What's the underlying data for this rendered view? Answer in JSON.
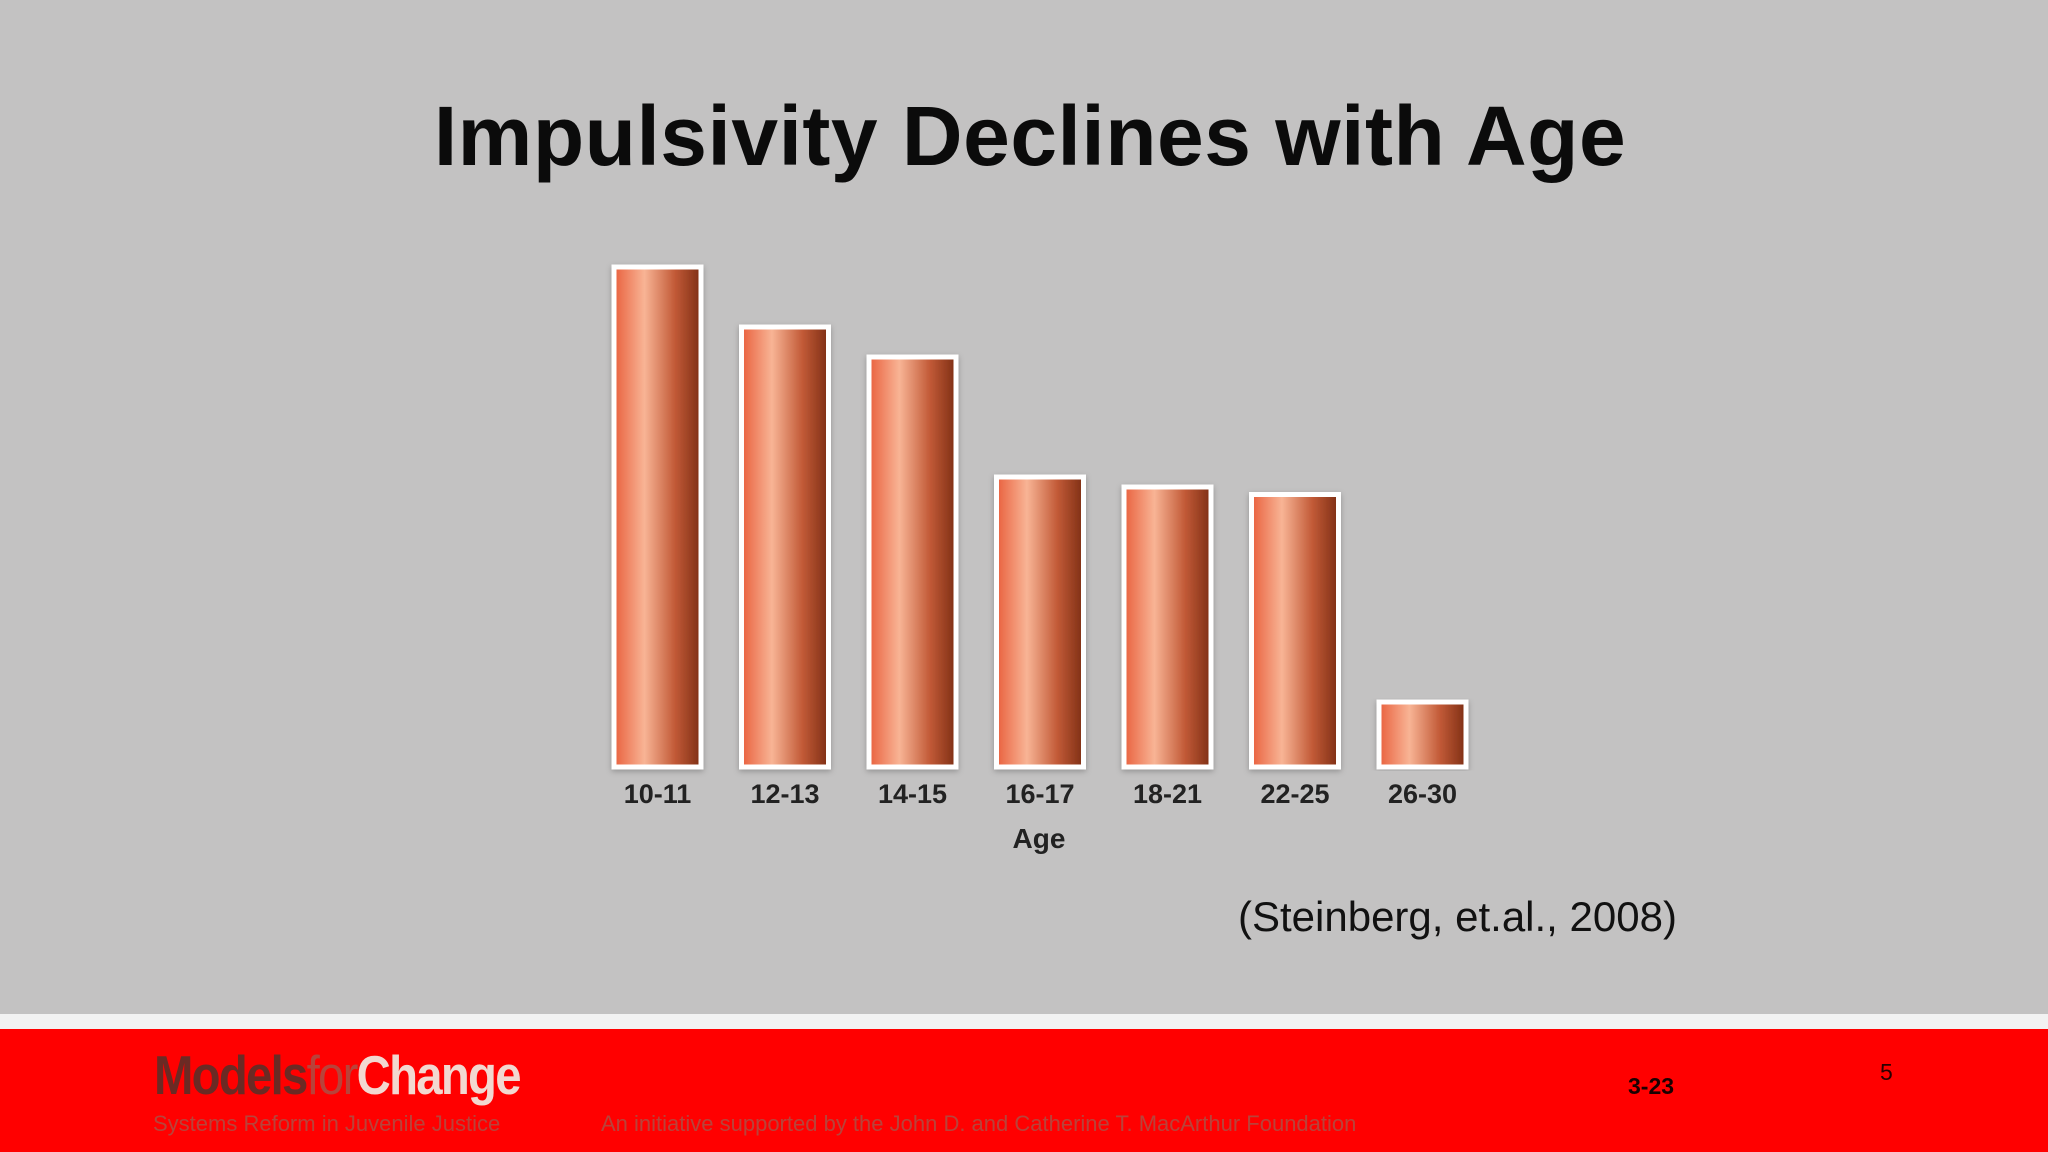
{
  "slide": {
    "title": "Impulsivity Declines with Age",
    "citation": "(Steinberg, et.al., 2008)",
    "page_number": "5",
    "code": "3-23"
  },
  "footer": {
    "logo_models": "Models",
    "logo_for": "for",
    "logo_change": "Change",
    "tagline": "Systems Reform in Juvenile Justice",
    "initiative": "An initiative supported by the John D. and Catherine T. MacArthur Foundation"
  },
  "colors": {
    "background": "#c3c2c2",
    "bar_light": "#f8b495",
    "bar_mid": "#e9603d",
    "bar_dark": "#8a3418",
    "footer_red": "#ff0000"
  },
  "chart_data": {
    "type": "bar",
    "xlabel": "Age",
    "categories": [
      "10-11",
      "12-13",
      "14-15",
      "16-17",
      "18-21",
      "22-25",
      "26-30"
    ],
    "values": [
      100,
      88,
      82,
      58,
      56,
      54.5,
      13
    ],
    "ylim": [
      0,
      100
    ],
    "grid": false,
    "legend": "none"
  }
}
